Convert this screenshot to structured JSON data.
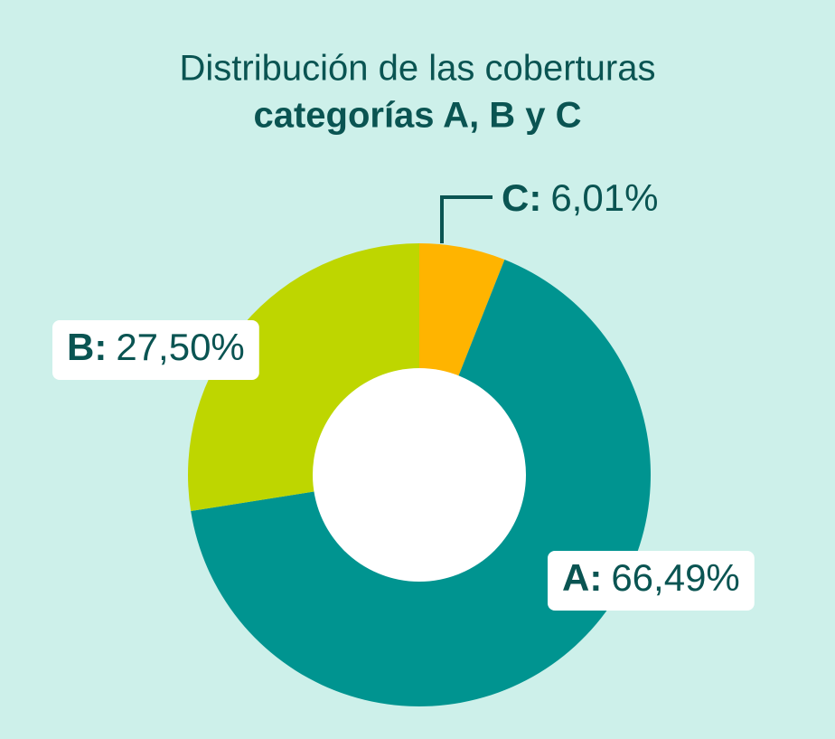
{
  "chart_data": {
    "type": "donut",
    "title": "Distribución de las coberturas",
    "subtitle": "categorías A, B y C",
    "categories": [
      "C:",
      "A:",
      "B:"
    ],
    "values": [
      6.01,
      66.49,
      27.5
    ],
    "value_labels": [
      "6,01%",
      "66,49%",
      "27,50%"
    ],
    "colors": [
      "#ffb400",
      "#009490",
      "#bed600"
    ]
  }
}
